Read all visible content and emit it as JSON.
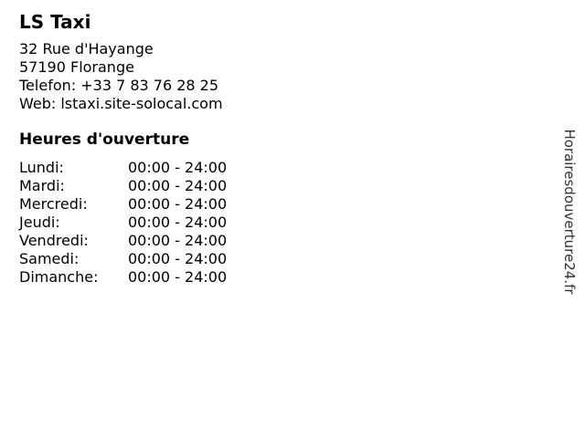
{
  "business": {
    "name": "LS Taxi",
    "contact_lines": [
      "32 Rue d'Hayange",
      "57190 Florange",
      "Telefon: +33 7 83 76 28 25",
      "Web: lstaxi.site-solocal.com"
    ]
  },
  "hours": {
    "title": "Heures d'ouverture",
    "rows": [
      {
        "day": "Lundi:",
        "time": "00:00 - 24:00"
      },
      {
        "day": "Mardi:",
        "time": "00:00 - 24:00"
      },
      {
        "day": "Mercredi:",
        "time": "00:00 - 24:00"
      },
      {
        "day": "Jeudi:",
        "time": "00:00 - 24:00"
      },
      {
        "day": "Vendredi:",
        "time": "00:00 - 24:00"
      },
      {
        "day": "Samedi:",
        "time": "00:00 - 24:00"
      },
      {
        "day": "Dimanche:",
        "time": "00:00 - 24:00"
      }
    ]
  },
  "watermark": {
    "text": "Horairesdouverture24.fr"
  },
  "colors": {
    "background": "#ffffff",
    "text": "#000000",
    "watermark": "#333333"
  }
}
